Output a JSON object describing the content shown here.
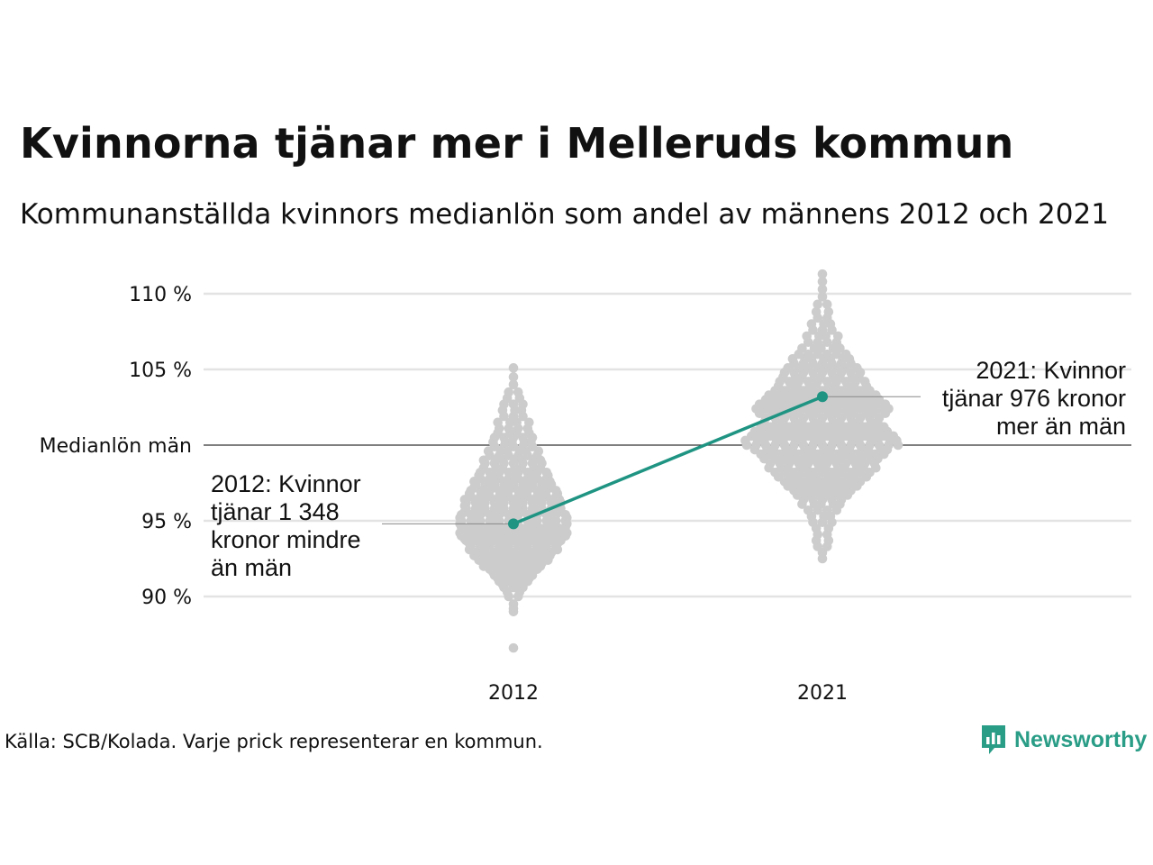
{
  "title": "Kvinnorna tjänar mer i Melleruds kommun",
  "subtitle": "Kommunanställda kvinnors medianlön som andel av männens 2012 och 2021",
  "source": "Källa: SCB/Kolada. Varje prick representerar en kommun.",
  "brand": {
    "name": "Newsworthy",
    "icon": "newsworthy-logo-icon",
    "color": "#2a9d87"
  },
  "annotations": {
    "left": [
      "2012: Kvinnor",
      "tjänar 1 348",
      "kronor mindre",
      "än män"
    ],
    "right": [
      "2021: Kvinnor",
      "tjänar 976 kronor",
      "mer än män"
    ]
  },
  "chart_data": {
    "type": "scatter",
    "subtype": "beeswarm",
    "categories": [
      "2012",
      "2021"
    ],
    "y_ticks": [
      {
        "value": 90,
        "label": "90 %"
      },
      {
        "value": 95,
        "label": "95 %"
      },
      {
        "value": 100,
        "label": "Medianlön män"
      },
      {
        "value": 105,
        "label": "105 %"
      },
      {
        "value": 110,
        "label": "110 %"
      }
    ],
    "ylim": [
      85.5,
      111.5
    ],
    "grid": true,
    "colors": {
      "dots": "#cccccc",
      "highlight": "#1f9483",
      "grid": "#e3e3e3",
      "reference": "#333333"
    },
    "highlight": {
      "name": "Melleruds kommun",
      "values": [
        {
          "x": "2012",
          "y": 94.8
        },
        {
          "x": "2021",
          "y": 103.2
        }
      ]
    },
    "distributions": [
      {
        "x": "2012",
        "values": [
          86.6,
          89.0,
          89.2,
          89.5,
          90.0,
          90.3,
          90.6,
          90.8,
          91.0,
          91.2,
          91.4,
          91.6,
          91.8,
          92.0,
          92.2,
          92.4,
          92.5,
          92.7,
          92.9,
          93.1,
          93.3,
          93.5,
          93.7,
          93.8,
          94.0,
          94.2,
          94.4,
          94.5,
          94.6,
          94.8,
          95.0,
          95.2,
          95.4,
          95.6,
          95.8,
          96.0,
          96.2,
          96.4,
          96.6,
          96.8,
          97.0,
          97.2,
          97.4,
          97.6,
          97.8,
          98.0,
          98.2,
          98.5,
          98.8,
          99.0,
          99.3,
          99.6,
          99.9,
          100.2,
          100.5,
          100.8,
          101.1,
          101.5,
          101.9,
          102.3,
          102.7,
          103.1,
          103.5,
          104.0,
          104.5,
          105.1
        ],
        "counts": [
          1,
          1,
          1,
          1,
          2,
          2,
          3,
          3,
          4,
          4,
          5,
          5,
          6,
          7,
          7,
          8,
          8,
          9,
          9,
          10,
          10,
          10,
          11,
          11,
          12,
          12,
          11,
          11,
          12,
          12,
          12,
          12,
          12,
          11,
          11,
          11,
          11,
          11,
          10,
          10,
          10,
          9,
          9,
          9,
          8,
          8,
          8,
          7,
          7,
          7,
          6,
          6,
          5,
          5,
          5,
          4,
          4,
          4,
          3,
          3,
          3,
          2,
          2,
          1,
          1,
          1
        ]
      },
      {
        "x": "2021",
        "values": [
          92.5,
          92.9,
          93.3,
          93.7,
          94.1,
          94.5,
          94.9,
          95.3,
          95.7,
          96.1,
          96.4,
          96.7,
          97.0,
          97.3,
          97.6,
          97.9,
          98.2,
          98.5,
          98.8,
          99.1,
          99.4,
          99.7,
          100.0,
          100.3,
          100.6,
          100.9,
          101.2,
          101.5,
          101.8,
          102.1,
          102.4,
          102.7,
          103.0,
          103.3,
          103.6,
          103.9,
          104.2,
          104.5,
          104.8,
          105.1,
          105.4,
          105.7,
          106.0,
          106.4,
          106.8,
          107.2,
          107.6,
          108.0,
          108.4,
          108.8,
          109.3,
          109.8,
          110.3,
          110.8,
          111.3
        ],
        "counts": [
          1,
          1,
          2,
          2,
          2,
          2,
          3,
          3,
          4,
          5,
          5,
          6,
          7,
          8,
          9,
          10,
          11,
          12,
          12,
          13,
          14,
          15,
          17,
          17,
          16,
          15,
          14,
          13,
          13,
          14,
          15,
          14,
          13,
          12,
          11,
          10,
          10,
          9,
          9,
          8,
          7,
          7,
          6,
          5,
          4,
          4,
          3,
          3,
          2,
          2,
          2,
          1,
          1,
          1,
          1
        ]
      }
    ]
  }
}
